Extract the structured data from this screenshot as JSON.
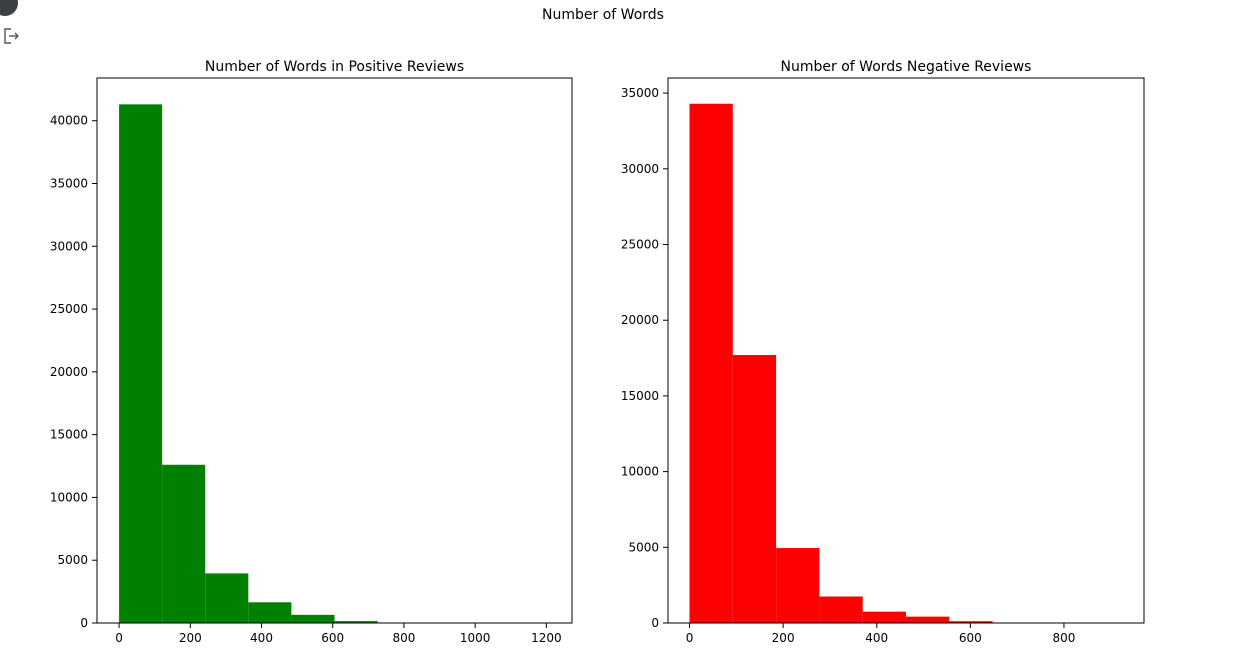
{
  "figure": {
    "suptitle": "Number of Words"
  },
  "icons": {
    "cell_indicator": "circle-icon",
    "output": "output-redirect-icon"
  },
  "chart_data": [
    {
      "type": "bar",
      "title": "Number of Words in Positive Reviews",
      "xlabel": "",
      "ylabel": "",
      "color": "#008000",
      "bin_edges": [
        0,
        121,
        242,
        363,
        484,
        605,
        726,
        847,
        968,
        1089,
        1210
      ],
      "values": [
        41300,
        12600,
        3950,
        1650,
        650,
        150,
        30,
        10,
        5,
        2
      ],
      "xlim": [
        -62,
        1272
      ],
      "ylim": [
        0,
        43400
      ],
      "xticks": [
        0,
        200,
        400,
        600,
        800,
        1000,
        1200
      ],
      "yticks": [
        0,
        5000,
        10000,
        15000,
        20000,
        25000,
        30000,
        35000,
        40000
      ]
    },
    {
      "type": "bar",
      "title": "Number of Words Negative Reviews",
      "xlabel": "",
      "ylabel": "",
      "color": "#ff0000",
      "bin_edges": [
        0,
        92.5,
        185,
        277.5,
        370,
        462.5,
        555,
        647.5,
        740,
        832.5,
        925
      ],
      "values": [
        34300,
        17700,
        4950,
        1750,
        750,
        420,
        120,
        30,
        10,
        5
      ],
      "xlim": [
        -46,
        971
      ],
      "ylim": [
        0,
        36000
      ],
      "xticks": [
        0,
        200,
        400,
        600,
        800
      ],
      "yticks": [
        0,
        5000,
        10000,
        15000,
        20000,
        25000,
        30000,
        35000
      ]
    }
  ]
}
